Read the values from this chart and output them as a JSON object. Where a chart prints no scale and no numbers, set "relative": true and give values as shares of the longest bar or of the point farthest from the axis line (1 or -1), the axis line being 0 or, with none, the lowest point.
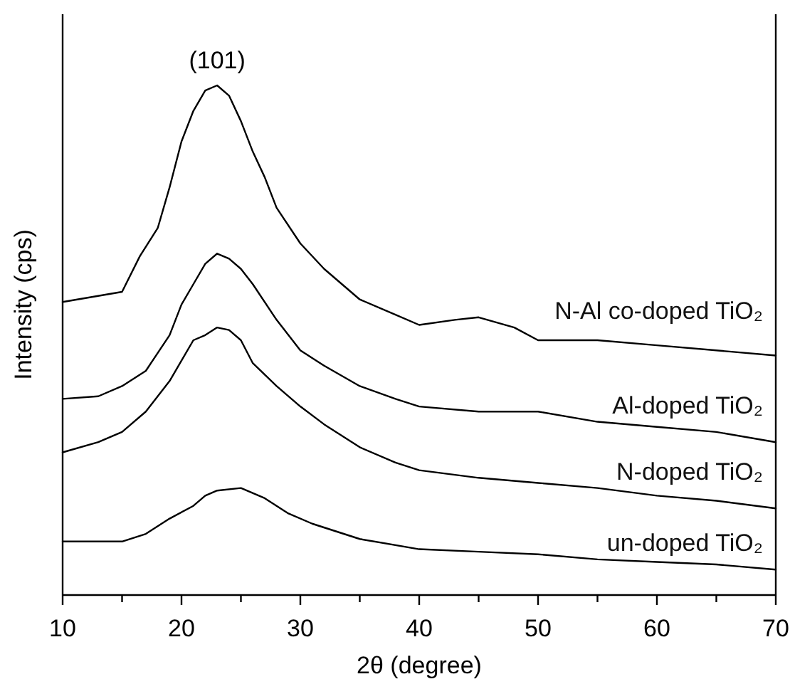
{
  "chart_data": {
    "type": "line",
    "relative": true,
    "xlabel": "2θ (degree)",
    "ylabel": "Intensity (cps)",
    "xlim": [
      10,
      70
    ],
    "xticks": [
      10,
      {
        "value": 15,
        "label": null
      },
      20,
      {
        "value": 25,
        "label": null
      },
      30,
      {
        "value": 35,
        "label": null
      },
      40,
      {
        "value": 45,
        "label": null
      },
      50,
      {
        "value": 55,
        "label": null
      },
      60,
      {
        "value": 65,
        "label": null
      },
      70
    ],
    "tick_labels": "x",
    "grid": false,
    "legend": false,
    "marker": "none",
    "line_style": "solid",
    "annotations": [
      {
        "text": "(101)",
        "x": 23,
        "y": 1
      }
    ],
    "series": [
      {
        "name": "N-Al co-doped TiO₂",
        "color": "#000000",
        "x": [
          10,
          15,
          16.5,
          18,
          19,
          20,
          21,
          22,
          23,
          24,
          25,
          26,
          27,
          28,
          30,
          32,
          35,
          38,
          40,
          43,
          45,
          48,
          50,
          55,
          60,
          65,
          70
        ],
        "values": [
          0.575,
          0.595,
          0.665,
          0.72,
          0.8,
          0.89,
          0.95,
          0.99,
          1,
          0.98,
          0.93,
          0.87,
          0.82,
          0.76,
          0.69,
          0.64,
          0.58,
          0.55,
          0.53,
          0.54,
          0.545,
          0.525,
          0.5,
          0.5,
          0.49,
          0.48,
          0.47
        ]
      },
      {
        "name": "Al-doped TiO₂",
        "color": "#000000",
        "x": [
          10,
          13,
          15,
          17,
          19,
          20,
          21,
          22,
          23,
          24,
          25,
          26,
          28,
          30,
          32,
          35,
          38,
          40,
          45,
          50,
          55,
          60,
          65,
          70
        ],
        "values": [
          0.385,
          0.39,
          0.41,
          0.44,
          0.51,
          0.57,
          0.61,
          0.65,
          0.67,
          0.66,
          0.64,
          0.61,
          0.54,
          0.48,
          0.45,
          0.41,
          0.385,
          0.37,
          0.36,
          0.36,
          0.34,
          0.33,
          0.32,
          0.3
        ]
      },
      {
        "name": "N-doped TiO₂",
        "color": "#000000",
        "x": [
          10,
          13,
          15,
          17,
          19,
          20,
          21,
          22,
          23,
          24,
          25,
          26,
          28,
          30,
          32,
          35,
          38,
          40,
          45,
          50,
          55,
          60,
          65,
          70
        ],
        "values": [
          0.28,
          0.3,
          0.32,
          0.36,
          0.42,
          0.46,
          0.5,
          0.51,
          0.525,
          0.52,
          0.5,
          0.455,
          0.41,
          0.37,
          0.335,
          0.29,
          0.26,
          0.245,
          0.23,
          0.22,
          0.21,
          0.195,
          0.185,
          0.17
        ]
      },
      {
        "name": "un-doped TiO₂",
        "color": "#000000",
        "x": [
          10,
          15,
          17,
          19,
          21,
          22,
          23,
          25,
          27,
          29,
          31,
          35,
          40,
          45,
          50,
          55,
          60,
          65,
          70
        ],
        "values": [
          0.105,
          0.105,
          0.12,
          0.15,
          0.175,
          0.195,
          0.205,
          0.21,
          0.19,
          0.16,
          0.14,
          0.11,
          0.09,
          0.085,
          0.08,
          0.07,
          0.065,
          0.06,
          0.05
        ]
      }
    ]
  }
}
